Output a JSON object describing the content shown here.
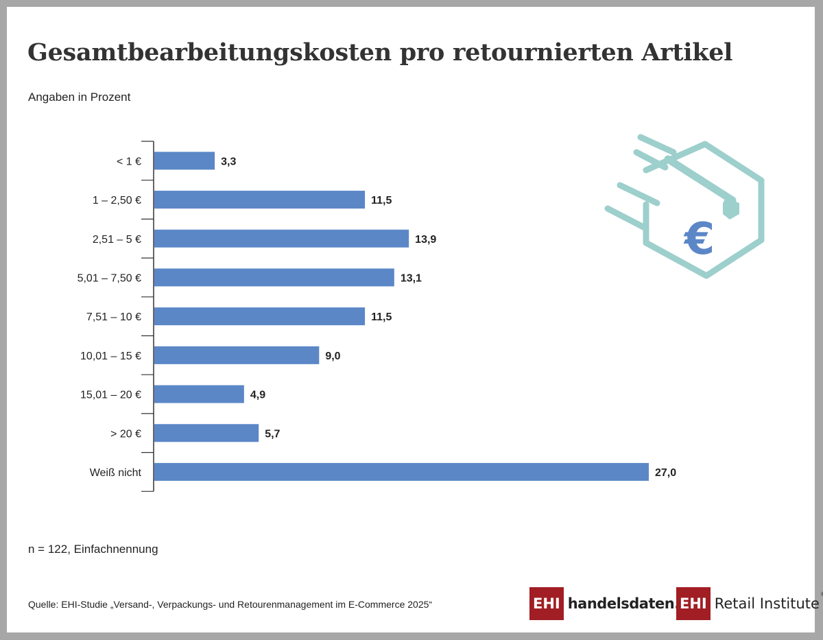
{
  "title": "Gesamtbearbeitungskosten pro retournierten Artikel",
  "subtitle": "Angaben in Prozent",
  "note": "n = 122, Einfachnennung",
  "source": "Quelle: EHI-Studie „Versand-, Verpackungs- und Retourenmanagement im E-Commerce 2025“",
  "logos": {
    "handelsdaten": {
      "mark": "EHI",
      "text": "handelsdaten.de"
    },
    "retail": {
      "mark": "EHI",
      "text": "Retail Institute",
      "registered": "®"
    }
  },
  "icon": {
    "name": "box-euro-icon",
    "symbol": "€"
  },
  "colors": {
    "bar": "#5b87c7",
    "icon": "#9dcfcc",
    "logo_red": "#a01e24",
    "text": "#222222"
  },
  "chart_data": {
    "type": "bar",
    "orientation": "horizontal",
    "categories": [
      "< 1 €",
      "1 – 2,50 €",
      "2,51 – 5 €",
      "5,01 – 7,50 €",
      "7,51 – 10 €",
      "10,01 – 15 €",
      "15,01 – 20 €",
      "> 20 €",
      "Weiß nicht"
    ],
    "values": [
      3.3,
      11.5,
      13.9,
      13.1,
      11.5,
      9.0,
      4.9,
      5.7,
      27.0
    ],
    "value_labels": [
      "3,3",
      "11,5",
      "13,9",
      "13,1",
      "11,5",
      "9,0",
      "4,9",
      "5,7",
      "27,0"
    ],
    "xlim": [
      0,
      27
    ],
    "grid": false,
    "legend": "none"
  }
}
